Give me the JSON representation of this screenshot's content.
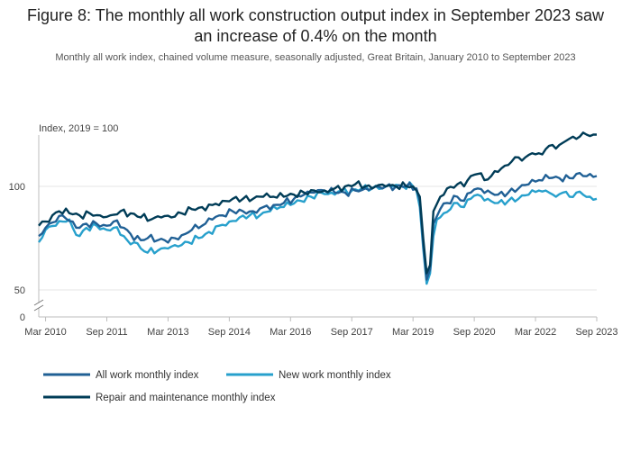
{
  "figure": {
    "title": "Figure 8: The monthly all work construction output index in September 2023 saw an increase of 0.4% on the month",
    "subtitle": "Monthly all work index, chained volume measure, seasonally adjusted, Great Britain, January 2010 to September 2023"
  },
  "chart_data": {
    "type": "line",
    "title": "Figure 8: The monthly all work construction output index in September 2023 saw an increase of 0.4% on the month",
    "subtitle": "Monthly all work index, chained volume measure, seasonally adjusted, Great Britain, January 2010 to September 2023",
    "ylabel": "Index, 2019 = 100",
    "xlabel": "",
    "y_axis_break": true,
    "y_ticks": [
      0,
      50,
      100
    ],
    "x_ticks": [
      "Mar 2010",
      "Sep 2011",
      "Mar 2013",
      "Sep 2014",
      "Mar 2016",
      "Sep 2017",
      "Mar 2019",
      "Sep 2020",
      "Mar 2022",
      "Sep 2023"
    ],
    "x_range": [
      "Jan 2010",
      "Sep 2023"
    ],
    "grid": "horizontal",
    "legend_position": "bottom",
    "colors": {
      "all_work": "#206095",
      "new_work": "#27a0cc",
      "repair_maintenance": "#003c57"
    },
    "series_anchors_note_x": "month index from Jan 2010 (0) to Sep 2023 (164)",
    "series": [
      {
        "name": "All work monthly index",
        "key": "all_work",
        "anchors": [
          [
            0,
            76
          ],
          [
            2,
            80
          ],
          [
            5,
            83
          ],
          [
            7,
            86
          ],
          [
            10,
            83
          ],
          [
            12,
            80
          ],
          [
            14,
            82
          ],
          [
            17,
            82
          ],
          [
            20,
            81
          ],
          [
            22,
            83
          ],
          [
            25,
            80
          ],
          [
            27,
            77
          ],
          [
            30,
            74
          ],
          [
            32,
            75
          ],
          [
            35,
            74
          ],
          [
            37,
            74
          ],
          [
            40,
            75
          ],
          [
            43,
            77
          ],
          [
            45,
            79
          ],
          [
            48,
            81
          ],
          [
            51,
            84
          ],
          [
            54,
            86
          ],
          [
            57,
            88
          ],
          [
            60,
            88
          ],
          [
            63,
            88
          ],
          [
            66,
            90
          ],
          [
            69,
            91
          ],
          [
            72,
            92
          ],
          [
            75,
            94
          ],
          [
            78,
            96
          ],
          [
            81,
            97
          ],
          [
            84,
            98
          ],
          [
            87,
            97
          ],
          [
            90,
            97
          ],
          [
            93,
            98
          ],
          [
            96,
            99
          ],
          [
            99,
            100
          ],
          [
            102,
            100
          ],
          [
            105,
            100
          ],
          [
            108,
            100
          ],
          [
            111,
            99
          ],
          [
            112,
            93
          ],
          [
            113,
            72
          ],
          [
            114,
            55
          ],
          [
            115,
            60
          ],
          [
            116,
            82
          ],
          [
            118,
            89
          ],
          [
            120,
            92
          ],
          [
            123,
            95
          ],
          [
            125,
            93
          ],
          [
            127,
            97
          ],
          [
            129,
            99
          ],
          [
            132,
            98
          ],
          [
            135,
            96
          ],
          [
            138,
            97
          ],
          [
            141,
            99
          ],
          [
            144,
            101
          ],
          [
            147,
            103
          ],
          [
            150,
            104
          ],
          [
            153,
            104
          ],
          [
            156,
            104
          ],
          [
            158,
            106
          ],
          [
            160,
            105
          ],
          [
            162,
            106
          ],
          [
            164,
            105
          ]
        ]
      },
      {
        "name": "New work monthly index",
        "key": "new_work",
        "anchors": [
          [
            0,
            73
          ],
          [
            2,
            79
          ],
          [
            5,
            81
          ],
          [
            7,
            83
          ],
          [
            9,
            84
          ],
          [
            10,
            80
          ],
          [
            12,
            76
          ],
          [
            14,
            80
          ],
          [
            17,
            81
          ],
          [
            20,
            79
          ],
          [
            22,
            80
          ],
          [
            25,
            76
          ],
          [
            26,
            74
          ],
          [
            27,
            72
          ],
          [
            28,
            73
          ],
          [
            30,
            70
          ],
          [
            32,
            68
          ],
          [
            35,
            69
          ],
          [
            38,
            70
          ],
          [
            41,
            71
          ],
          [
            44,
            73
          ],
          [
            47,
            75
          ],
          [
            50,
            78
          ],
          [
            53,
            81
          ],
          [
            56,
            83
          ],
          [
            59,
            85
          ],
          [
            62,
            86
          ],
          [
            65,
            86
          ],
          [
            68,
            88
          ],
          [
            71,
            90
          ],
          [
            74,
            91
          ],
          [
            77,
            93
          ],
          [
            80,
            95
          ],
          [
            83,
            97
          ],
          [
            86,
            97
          ],
          [
            89,
            98
          ],
          [
            92,
            98
          ],
          [
            95,
            99
          ],
          [
            98,
            99
          ],
          [
            101,
            99
          ],
          [
            104,
            100
          ],
          [
            107,
            100
          ],
          [
            110,
            100
          ],
          [
            111,
            98
          ],
          [
            112,
            90
          ],
          [
            113,
            70
          ],
          [
            114,
            53
          ],
          [
            115,
            58
          ],
          [
            116,
            76
          ],
          [
            117,
            84
          ],
          [
            119,
            87
          ],
          [
            121,
            89
          ],
          [
            123,
            92
          ],
          [
            125,
            90
          ],
          [
            127,
            94
          ],
          [
            129,
            96
          ],
          [
            132,
            94
          ],
          [
            135,
            92
          ],
          [
            138,
            93
          ],
          [
            141,
            94
          ],
          [
            144,
            96
          ],
          [
            147,
            98
          ],
          [
            149,
            98
          ],
          [
            150,
            97
          ],
          [
            152,
            95
          ],
          [
            154,
            97
          ],
          [
            156,
            95
          ],
          [
            158,
            97
          ],
          [
            160,
            96
          ],
          [
            162,
            95
          ],
          [
            164,
            94
          ]
        ]
      },
      {
        "name": "Repair and maintenance monthly index",
        "key": "repair_maintenance",
        "anchors": [
          [
            0,
            81
          ],
          [
            2,
            83
          ],
          [
            4,
            86
          ],
          [
            6,
            88
          ],
          [
            9,
            87
          ],
          [
            12,
            86
          ],
          [
            15,
            87
          ],
          [
            18,
            86
          ],
          [
            21,
            86
          ],
          [
            24,
            88
          ],
          [
            27,
            87
          ],
          [
            30,
            85
          ],
          [
            33,
            84
          ],
          [
            36,
            85
          ],
          [
            39,
            85
          ],
          [
            42,
            87
          ],
          [
            45,
            89
          ],
          [
            48,
            90
          ],
          [
            51,
            91
          ],
          [
            54,
            93
          ],
          [
            57,
            94
          ],
          [
            60,
            94
          ],
          [
            63,
            94
          ],
          [
            66,
            95
          ],
          [
            69,
            95
          ],
          [
            72,
            95
          ],
          [
            75,
            96
          ],
          [
            78,
            97
          ],
          [
            81,
            98
          ],
          [
            84,
            98
          ],
          [
            87,
            99
          ],
          [
            90,
            100
          ],
          [
            93,
            101
          ],
          [
            96,
            100
          ],
          [
            98,
            99
          ],
          [
            99,
            100
          ],
          [
            102,
            100
          ],
          [
            105,
            100
          ],
          [
            108,
            100
          ],
          [
            110,
            100
          ],
          [
            111,
            98
          ],
          [
            112,
            95
          ],
          [
            113,
            75
          ],
          [
            114,
            58
          ],
          [
            115,
            62
          ],
          [
            116,
            88
          ],
          [
            118,
            95
          ],
          [
            120,
            99
          ],
          [
            123,
            101
          ],
          [
            125,
            100
          ],
          [
            127,
            105
          ],
          [
            129,
            106
          ],
          [
            131,
            103
          ],
          [
            133,
            105
          ],
          [
            135,
            107
          ],
          [
            137,
            110
          ],
          [
            139,
            112
          ],
          [
            141,
            114
          ],
          [
            143,
            114
          ],
          [
            145,
            116
          ],
          [
            147,
            116
          ],
          [
            149,
            118
          ],
          [
            151,
            120
          ],
          [
            153,
            120
          ],
          [
            155,
            122
          ],
          [
            157,
            124
          ],
          [
            159,
            124
          ],
          [
            161,
            125
          ],
          [
            163,
            125
          ],
          [
            164,
            125
          ]
        ]
      }
    ]
  },
  "legend": {
    "items": [
      {
        "label": "All work monthly index",
        "color": "#206095"
      },
      {
        "label": "New work monthly index",
        "color": "#27a0cc"
      },
      {
        "label": "Repair and maintenance monthly index",
        "color": "#003c57"
      }
    ]
  }
}
